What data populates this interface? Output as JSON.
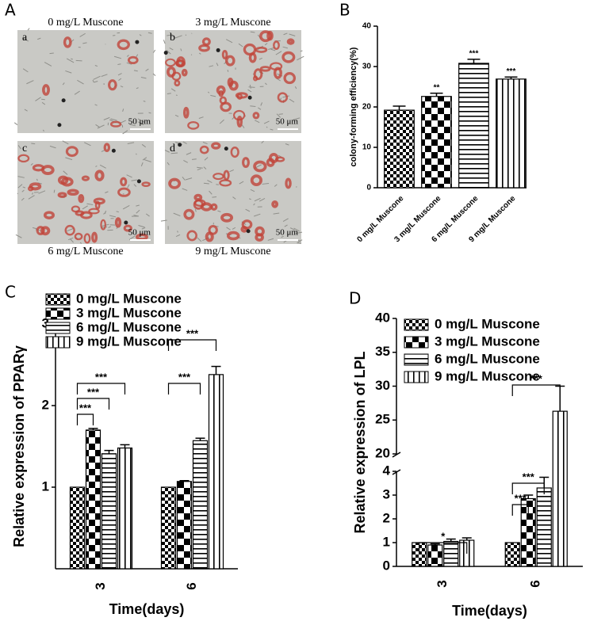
{
  "figure_a": {
    "panel": "A",
    "images": [
      {
        "letter": "a",
        "caption": "0 mg/L Muscone",
        "scale": "50 μm"
      },
      {
        "letter": "b",
        "caption": "3 mg/L Muscone",
        "scale": "50 μm"
      },
      {
        "letter": "c",
        "caption": "6 mg/L Muscone",
        "scale": "50 μm"
      },
      {
        "letter": "d",
        "caption": "9 mg/L Muscone",
        "scale": "50 μm"
      }
    ]
  },
  "chart_data": [
    {
      "type": "bar",
      "panel": "B",
      "ylabel": "colony-forming efficiency(%)",
      "categories": [
        "0 mg/L Muscone",
        "3 mg/L Muscone",
        "6 mg/L Muscone",
        "9 mg/L Muscone"
      ],
      "values": [
        19.2,
        22.6,
        30.8,
        26.9
      ],
      "errors": [
        1.0,
        0.8,
        1.0,
        0.5
      ],
      "significance": [
        null,
        "**",
        "***",
        "***"
      ],
      "patterns": [
        "checker-small",
        "checker-large",
        "horizontal",
        "vertical"
      ],
      "ylim": [
        0,
        40
      ],
      "yticks": [
        0,
        10,
        20,
        30,
        40
      ]
    },
    {
      "type": "bar",
      "panel": "C",
      "ylabel": "Relative expression of PPARγ",
      "xlabel": "Time(days)",
      "categories": [
        "3",
        "6"
      ],
      "series": [
        {
          "name": "0 mg/L Muscone",
          "pattern": "checker-small",
          "values": [
            1,
            1
          ],
          "errors": [
            0,
            0
          ]
        },
        {
          "name": "3 mg/L Muscone",
          "pattern": "checker-large",
          "values": [
            1.7,
            1.07
          ],
          "errors": [
            0.02,
            0.01
          ]
        },
        {
          "name": "6 mg/L Muscone",
          "pattern": "horizontal",
          "values": [
            1.41,
            1.57
          ],
          "errors": [
            0.04,
            0.03
          ]
        },
        {
          "name": "9 mg/L Muscone",
          "pattern": "vertical",
          "values": [
            1.48,
            2.38
          ],
          "errors": [
            0.04,
            0.1
          ]
        }
      ],
      "brackets": [
        {
          "category": 0,
          "from": 0,
          "to": 1,
          "label": "***"
        },
        {
          "category": 0,
          "from": 0,
          "to": 2,
          "label": "***"
        },
        {
          "category": 0,
          "from": 0,
          "to": 3,
          "label": "***"
        },
        {
          "category": 1,
          "from": 0,
          "to": 2,
          "label": "***"
        },
        {
          "category": 1,
          "from": 0,
          "to": 3,
          "label": "***"
        }
      ],
      "ylim": [
        0,
        3
      ],
      "yticks": [
        1,
        2,
        3
      ]
    },
    {
      "type": "bar",
      "panel": "D",
      "ylabel": "Relative expression of LPL",
      "xlabel": "Time(days)",
      "categories": [
        "3",
        "6"
      ],
      "series": [
        {
          "name": "0 mg/L Muscone",
          "pattern": "checker-small",
          "values": [
            1,
            1
          ],
          "errors": [
            0,
            0
          ]
        },
        {
          "name": "3 mg/L Muscone",
          "pattern": "checker-large",
          "values": [
            0.9,
            2.85
          ],
          "errors": [
            0.05,
            0.15
          ]
        },
        {
          "name": "6 mg/L Muscone",
          "pattern": "horizontal",
          "values": [
            1.05,
            3.3
          ],
          "errors": [
            0.1,
            0.45
          ]
        },
        {
          "name": "9 mg/L Muscone",
          "pattern": "vertical",
          "values": [
            1.1,
            26.3
          ],
          "errors": [
            0.1,
            3.7
          ]
        }
      ],
      "brackets": [
        {
          "category": 0,
          "from": 0,
          "to": 3,
          "label": "*"
        },
        {
          "category": 1,
          "from": 0,
          "to": 1,
          "label": "***"
        },
        {
          "category": 1,
          "from": 0,
          "to": 2,
          "label": "***"
        },
        {
          "category": 1,
          "from": 0,
          "to": 3,
          "label": "***"
        }
      ],
      "ylim": [
        0,
        40
      ],
      "ybreak": [
        4,
        20
      ],
      "yticks": [
        0,
        1,
        2,
        3,
        4,
        20,
        25,
        30,
        35,
        40
      ]
    }
  ]
}
